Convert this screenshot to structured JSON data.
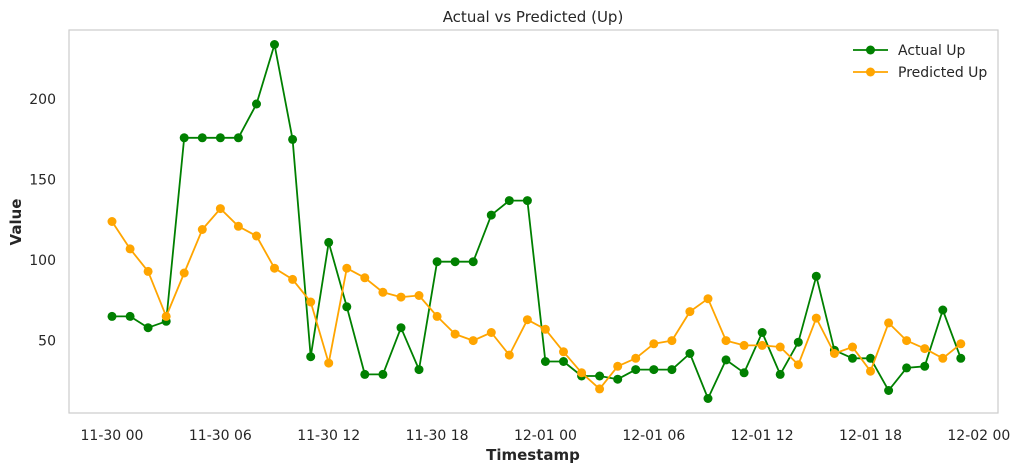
{
  "chart_data": {
    "type": "line",
    "title": "Actual vs Predicted (Up)",
    "xlabel": "Timestamp",
    "ylabel": "Value",
    "x_start": "2023-11-30 00:00",
    "x_step_hours": 1,
    "x_ticks": [
      "11-30 00",
      "11-30 06",
      "11-30 12",
      "11-30 18",
      "12-01 00",
      "12-01 06",
      "12-01 12",
      "12-01 18",
      "12-02 00"
    ],
    "y_ticks": [
      50,
      100,
      150,
      200
    ],
    "ylim": [
      5,
      243
    ],
    "grid": false,
    "legend_position": "top-right",
    "series": [
      {
        "name": "Actual Up",
        "color": "#008000",
        "values": [
          65,
          65,
          58,
          62,
          176,
          176,
          176,
          176,
          197,
          234,
          175,
          40,
          111,
          71,
          29,
          29,
          58,
          32,
          99,
          99,
          99,
          128,
          137,
          137,
          37,
          37,
          28,
          28,
          26,
          32,
          32,
          32,
          42,
          14,
          38,
          30,
          55,
          29,
          49,
          90,
          44,
          39,
          39,
          19,
          33,
          34,
          69,
          39
        ]
      },
      {
        "name": "Predicted Up",
        "color": "#FFA500",
        "values": [
          124,
          107,
          93,
          65,
          92,
          119,
          132,
          121,
          115,
          95,
          88,
          74,
          36,
          95,
          89,
          80,
          77,
          78,
          65,
          54,
          50,
          55,
          41,
          63,
          57,
          43,
          30,
          20,
          34,
          39,
          48,
          50,
          68,
          76,
          50,
          47,
          47,
          46,
          35,
          64,
          42,
          46,
          31,
          61,
          50,
          45,
          39,
          48
        ]
      }
    ]
  }
}
